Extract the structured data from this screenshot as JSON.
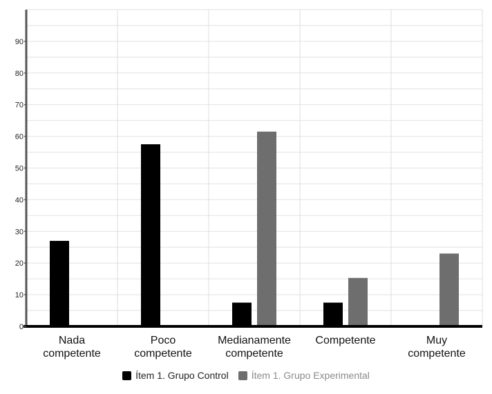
{
  "chart_data": {
    "type": "bar",
    "categories": [
      [
        "Nada",
        "competente"
      ],
      [
        "Poco",
        "competente"
      ],
      [
        "Medianamente",
        "competente"
      ],
      [
        "Competente"
      ],
      [
        "Muy",
        "competente"
      ]
    ],
    "series": [
      {
        "name": "Ítem 1. Grupo Control",
        "color": "#000000",
        "text_color": "#222222",
        "values": [
          27,
          57.5,
          7.5,
          7.5,
          0
        ]
      },
      {
        "name": "Ítem 1. Grupo Experimental",
        "color": "#6e6e6e",
        "text_color": "#8a8a8a",
        "values": [
          0,
          0,
          61.5,
          15.3,
          23
        ]
      }
    ],
    "ylim": [
      0,
      100
    ],
    "yticks": [
      0,
      10,
      20,
      30,
      40,
      50,
      60,
      70,
      80,
      90
    ],
    "grid": true,
    "legend": "bottom"
  }
}
